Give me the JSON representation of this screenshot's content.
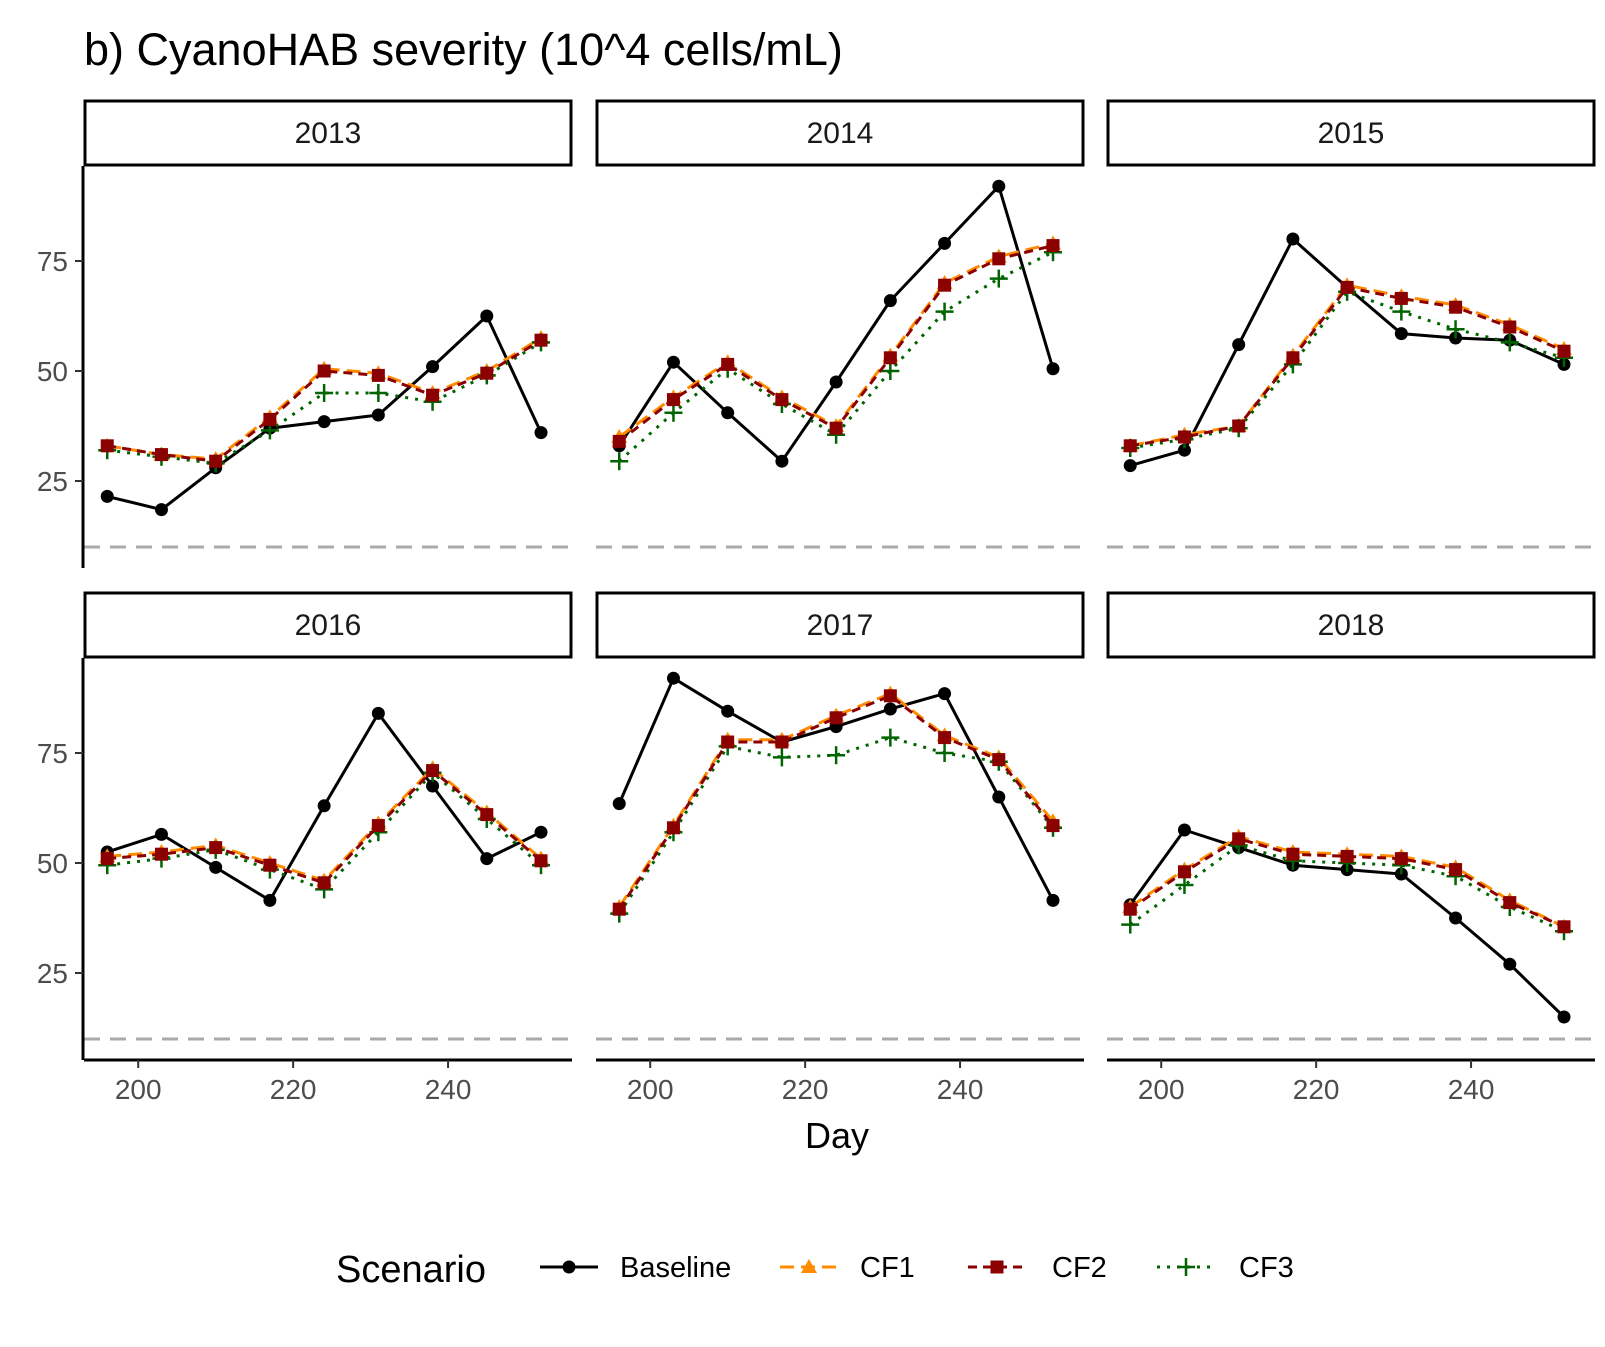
{
  "chart_data": {
    "type": "line",
    "title": "b) CyanoHAB severity (10^4 cells/mL)",
    "xlabel": "Day",
    "ylabel": "",
    "facet_by": "year",
    "facet_layout": "3 columns x 2 rows, shared axes",
    "x_ticks": [
      200,
      220,
      240
    ],
    "y_ticks": [
      25,
      50,
      75
    ],
    "xlim": [
      193,
      256
    ],
    "ylim": [
      5,
      95
    ],
    "reference_line": {
      "y": 10,
      "style": "dashed",
      "color": "#aaaaaa"
    },
    "x": [
      196,
      203,
      210,
      217,
      224,
      231,
      238,
      245,
      252
    ],
    "legend": {
      "title": "Scenario",
      "position": "bottom"
    },
    "series_styles": [
      {
        "name": "Baseline",
        "color": "#000000",
        "dash": "solid",
        "marker": "circle"
      },
      {
        "name": "CF1",
        "color": "#FF8C00",
        "dash": "long-dash",
        "marker": "triangle"
      },
      {
        "name": "CF2",
        "color": "#8B0000",
        "dash": "dashed",
        "marker": "square"
      },
      {
        "name": "CF3",
        "color": "#006400",
        "dash": "dotted",
        "marker": "plus"
      }
    ],
    "panels": [
      {
        "label": "2013",
        "series": [
          {
            "name": "Baseline",
            "values": [
              21.5,
              18.5,
              28,
              37,
              38.5,
              40,
              51,
              62.5,
              36
            ]
          },
          {
            "name": "CF1",
            "values": [
              33,
              31,
              30,
              39.5,
              50.5,
              49.5,
              45,
              50,
              57.5
            ]
          },
          {
            "name": "CF2",
            "values": [
              33,
              31,
              29.5,
              39,
              50,
              49,
              44.5,
              49.5,
              57
            ]
          },
          {
            "name": "CF3",
            "values": [
              32,
              30.5,
              29,
              36.5,
              45,
              45,
              43,
              49,
              56.5
            ]
          }
        ]
      },
      {
        "label": "2014",
        "series": [
          {
            "name": "Baseline",
            "values": [
              33,
              52,
              40.5,
              29.5,
              47.5,
              66,
              79,
              92,
              50.5
            ]
          },
          {
            "name": "CF1",
            "values": [
              35,
              44,
              52,
              44,
              37.5,
              53.5,
              70,
              76,
              79
            ]
          },
          {
            "name": "CF2",
            "values": [
              34,
              43.5,
              51.5,
              43.5,
              37,
              53,
              69.5,
              75.5,
              78.5
            ]
          },
          {
            "name": "CF3",
            "values": [
              29.5,
              40.5,
              50.5,
              42.5,
              35.5,
              50,
              63.5,
              71,
              77
            ]
          }
        ]
      },
      {
        "label": "2015",
        "series": [
          {
            "name": "Baseline",
            "values": [
              28.5,
              32,
              56,
              80,
              69,
              58.5,
              57.5,
              57,
              51.5
            ]
          },
          {
            "name": "CF1",
            "values": [
              33,
              35.5,
              37.5,
              53.5,
              69.5,
              67,
              65,
              60.5,
              55
            ]
          },
          {
            "name": "CF2",
            "values": [
              33,
              35,
              37.5,
              53,
              69,
              66.5,
              64.5,
              60,
              54.5
            ]
          },
          {
            "name": "CF3",
            "values": [
              32.5,
              34.5,
              37,
              51.5,
              68,
              63.5,
              59.5,
              56.5,
              53
            ]
          }
        ]
      },
      {
        "label": "2016",
        "series": [
          {
            "name": "Baseline",
            "values": [
              52.5,
              56.5,
              49,
              41.5,
              63,
              84,
              67.5,
              51,
              57
            ]
          },
          {
            "name": "CF1",
            "values": [
              51.5,
              52.5,
              54,
              50,
              46,
              59,
              71.5,
              61.5,
              51
            ]
          },
          {
            "name": "CF2",
            "values": [
              51,
              52,
              53.5,
              49.5,
              45.5,
              58.5,
              71,
              61,
              50.5
            ]
          },
          {
            "name": "CF3",
            "values": [
              49.5,
              51,
              53,
              48.5,
              44,
              57,
              70.5,
              60,
              49.5
            ]
          }
        ]
      },
      {
        "label": "2017",
        "series": [
          {
            "name": "Baseline",
            "values": [
              63.5,
              92,
              84.5,
              77.5,
              81,
              85,
              88.5,
              65,
              41.5
            ]
          },
          {
            "name": "CF1",
            "values": [
              40,
              58.5,
              78,
              78,
              83.5,
              88.5,
              79,
              74,
              59.5
            ]
          },
          {
            "name": "CF2",
            "values": [
              39.5,
              58,
              77.5,
              77.5,
              83,
              88,
              78.5,
              73.5,
              58.5
            ]
          },
          {
            "name": "CF3",
            "values": [
              38.5,
              57,
              76.5,
              74,
              74.5,
              78.5,
              75,
              73,
              58
            ]
          }
        ]
      },
      {
        "label": "2018",
        "series": [
          {
            "name": "Baseline",
            "values": [
              40.5,
              57.5,
              53.5,
              49.5,
              48.5,
              47.5,
              37.5,
              27,
              15
            ]
          },
          {
            "name": "CF1",
            "values": [
              40,
              48.5,
              56,
              52.5,
              52,
              51.5,
              49,
              41.5,
              35.5
            ]
          },
          {
            "name": "CF2",
            "values": [
              39.5,
              48,
              55.5,
              52,
              51.5,
              51,
              48.5,
              41,
              35.5
            ]
          },
          {
            "name": "CF3",
            "values": [
              36,
              45,
              54,
              50.5,
              50,
              49.5,
              47,
              40,
              34.5
            ]
          }
        ]
      }
    ]
  }
}
